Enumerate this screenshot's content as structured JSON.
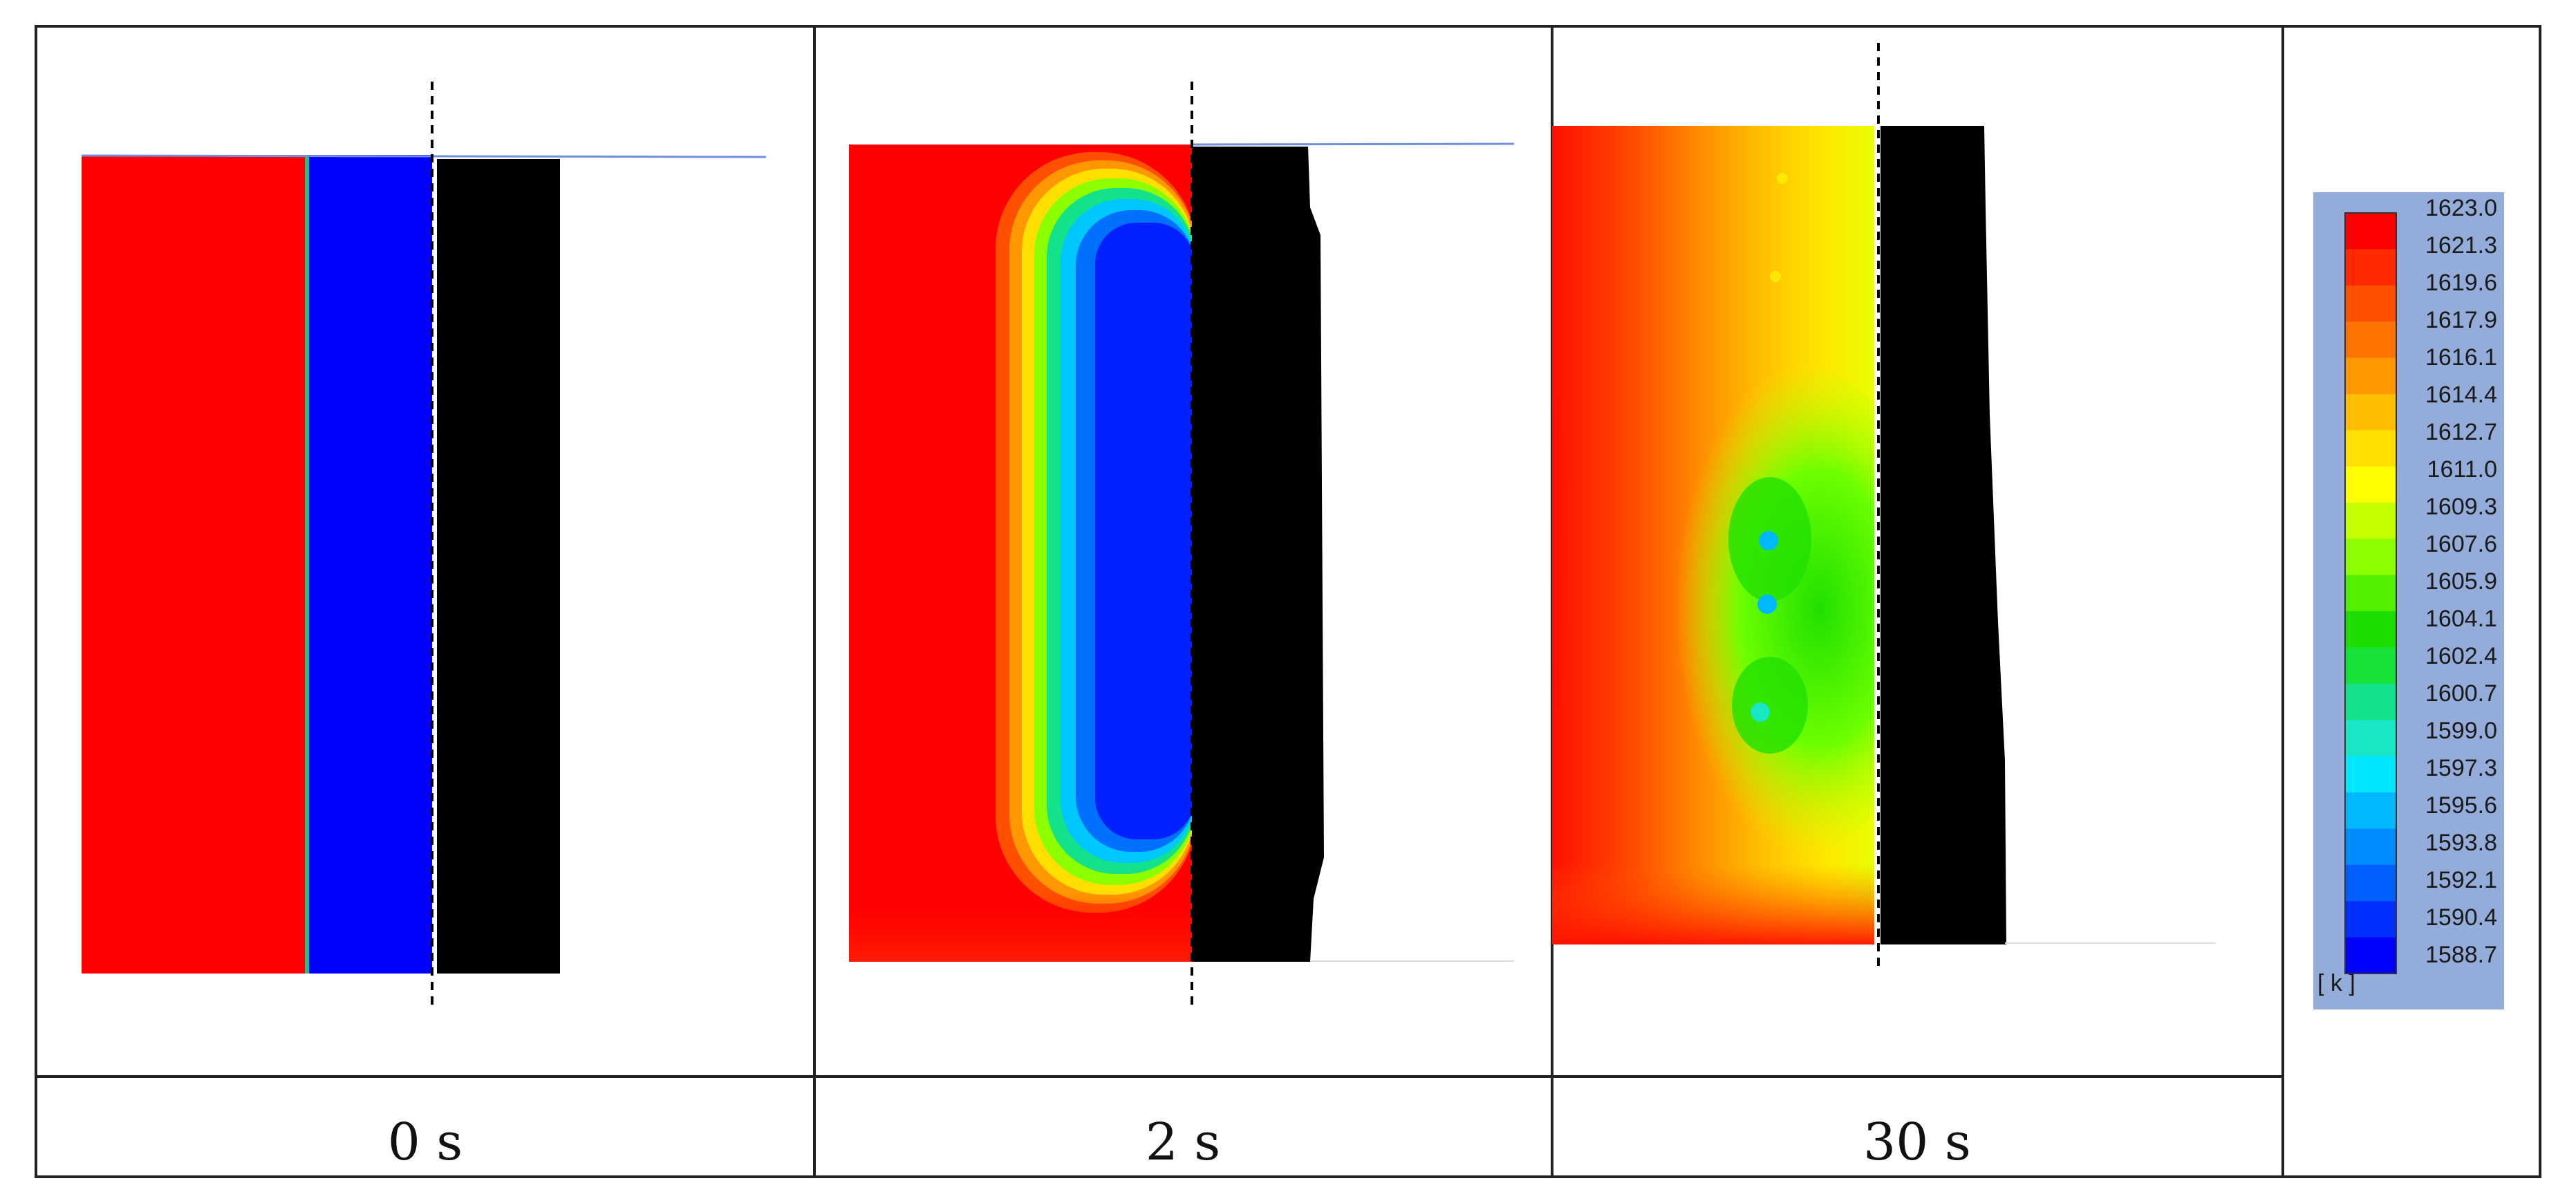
{
  "figure": {
    "panels": [
      {
        "id": "t0",
        "caption": "0 s"
      },
      {
        "id": "t2",
        "caption": "2 s"
      },
      {
        "id": "t30",
        "caption": "30 s"
      }
    ],
    "legend": {
      "unit_label": "[ k ]",
      "values": [
        "1623.0",
        "1621.3",
        "1619.6",
        "1617.9",
        "1616.1",
        "1614.4",
        "1612.7",
        "1611.0",
        "1609.3",
        "1607.6",
        "1605.9",
        "1604.1",
        "1602.4",
        "1600.7",
        "1599.0",
        "1597.3",
        "1595.6",
        "1593.8",
        "1592.1",
        "1590.4",
        "1588.7"
      ],
      "colors": [
        "#ff0000",
        "#ff2a00",
        "#ff5000",
        "#ff7400",
        "#ff9800",
        "#ffbd00",
        "#ffdf00",
        "#ffff00",
        "#c4ff00",
        "#8cff00",
        "#52f000",
        "#1ddc00",
        "#16e23a",
        "#14e28a",
        "#18e6c4",
        "#00e6ff",
        "#00b8ff",
        "#008cff",
        "#0060ff",
        "#0030ff",
        "#0000ff"
      ]
    },
    "colors": {
      "hot": "#ff0000",
      "cold": "#0000ff",
      "solid": "#000000",
      "surface_line": "#6f8fe0",
      "legend_bg": "#93acd9",
      "border": "#222222"
    }
  }
}
